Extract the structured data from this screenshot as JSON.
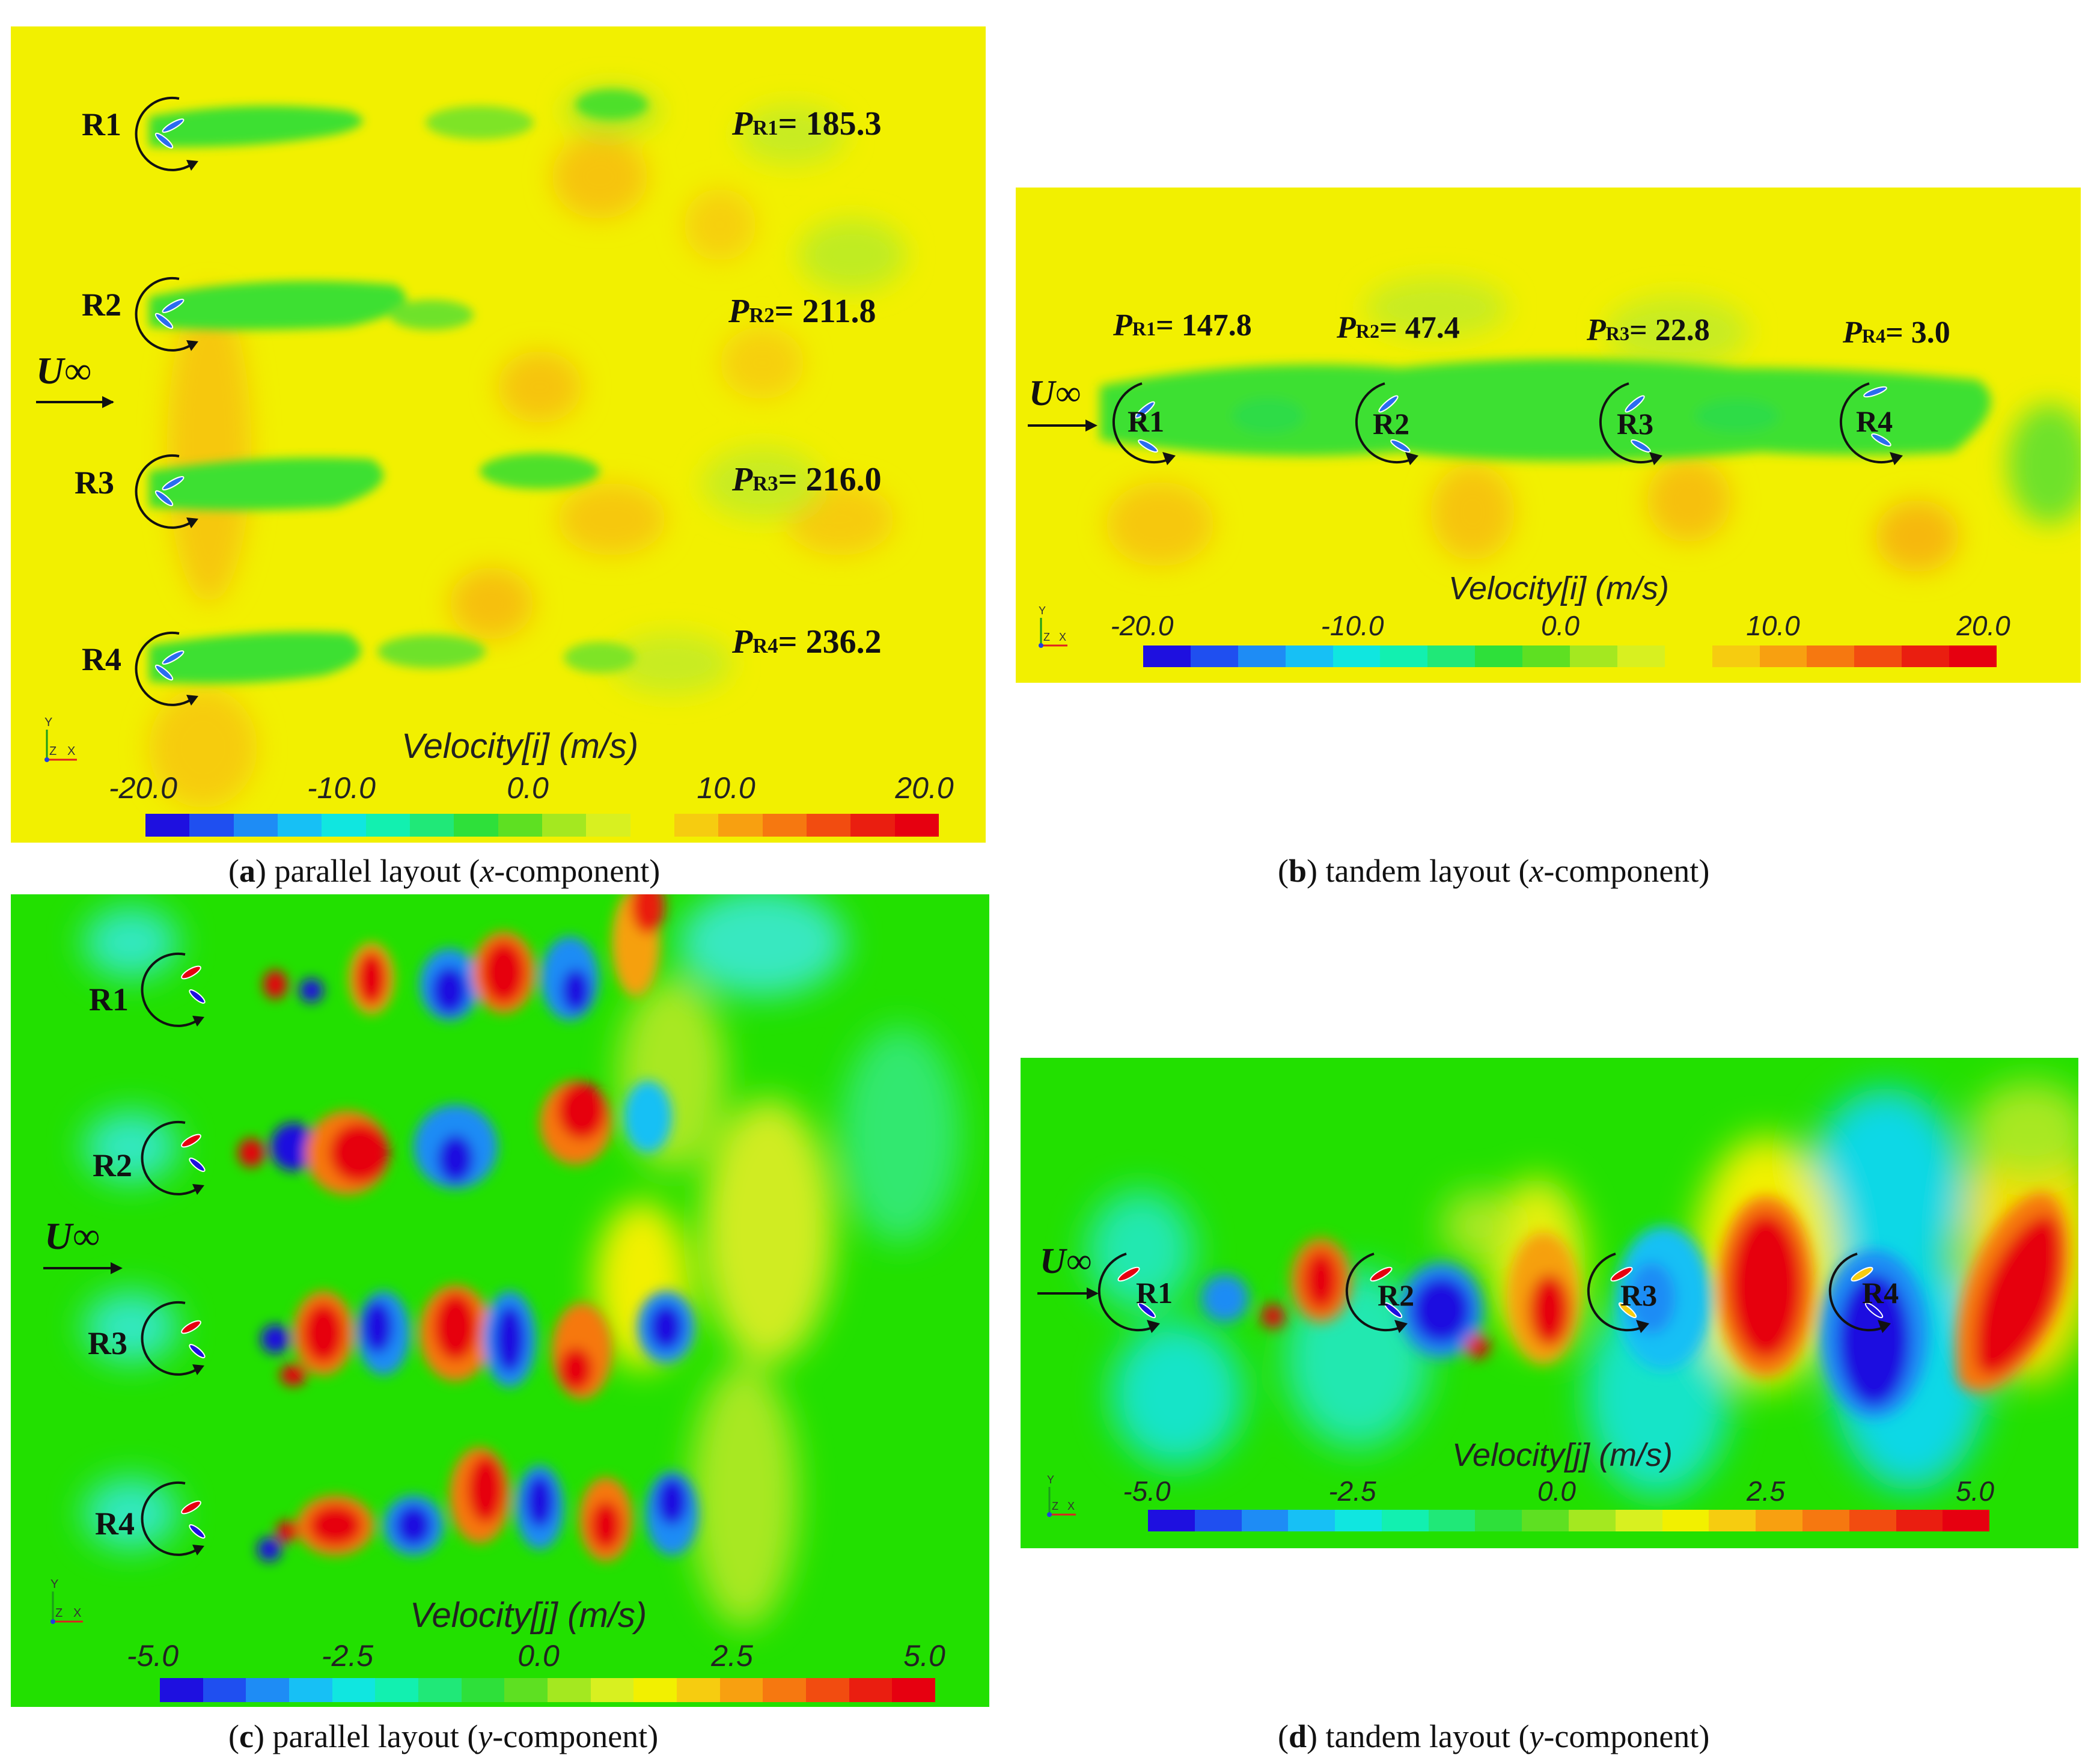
{
  "panels": {
    "a": {
      "tag": "a",
      "caption": "parallel layout",
      "component": "x",
      "colorbar": {
        "title": "Velocity[i] (m/s)",
        "ticks": [
          "-20.0",
          "-10.0",
          "0.0",
          "10.0",
          "20.0"
        ],
        "range": [
          -20.0,
          20.0
        ]
      },
      "flow_label": "U∞",
      "rotors": [
        {
          "label": "R1",
          "power_label": "P",
          "power_sub": "R1",
          "power_value": "= 185.3"
        },
        {
          "label": "R2",
          "power_label": "P",
          "power_sub": "R2",
          "power_value": "= 211.8"
        },
        {
          "label": "R3",
          "power_label": "P",
          "power_sub": "R3",
          "power_value": "= 216.0"
        },
        {
          "label": "R4",
          "power_label": "P",
          "power_sub": "R4",
          "power_value": "= 236.2"
        }
      ]
    },
    "b": {
      "tag": "b",
      "caption": "tandem layout",
      "component": "x",
      "colorbar": {
        "title": "Velocity[i] (m/s)",
        "ticks": [
          "-20.0",
          "-10.0",
          "0.0",
          "10.0",
          "20.0"
        ],
        "range": [
          -20.0,
          20.0
        ]
      },
      "flow_label": "U∞",
      "rotors": [
        {
          "label": "R1",
          "power_label": "P",
          "power_sub": "R1",
          "power_value": "= 147.8"
        },
        {
          "label": "R2",
          "power_label": "P",
          "power_sub": "R2",
          "power_value": "= 47.4"
        },
        {
          "label": "R3",
          "power_label": "P",
          "power_sub": "R3",
          "power_value": "= 22.8"
        },
        {
          "label": "R4",
          "power_label": "P",
          "power_sub": "R4",
          "power_value": "= 3.0"
        }
      ]
    },
    "c": {
      "tag": "c",
      "caption": "parallel layout",
      "component": "y",
      "colorbar": {
        "title": "Velocity[j] (m/s)",
        "ticks": [
          "-5.0",
          "-2.5",
          "0.0",
          "2.5",
          "5.0"
        ],
        "range": [
          -5.0,
          5.0
        ]
      },
      "flow_label": "U∞",
      "rotors": [
        {
          "label": "R1"
        },
        {
          "label": "R2"
        },
        {
          "label": "R3"
        },
        {
          "label": "R4"
        }
      ]
    },
    "d": {
      "tag": "d",
      "caption": "tandem layout",
      "component": "y",
      "colorbar": {
        "title": "Velocity[j] (m/s)",
        "ticks": [
          "-5.0",
          "-2.5",
          "0.0",
          "2.5",
          "5.0"
        ],
        "range": [
          -5.0,
          5.0
        ]
      },
      "flow_label": "U∞",
      "rotors": [
        {
          "label": "R1"
        },
        {
          "label": "R2"
        },
        {
          "label": "R3"
        },
        {
          "label": "R4"
        }
      ]
    }
  },
  "caption_suffix": "-component",
  "axis_labels": {
    "y": "Y",
    "z": "Z",
    "x": "X"
  },
  "colors": {
    "xvel_background": "#f2f000",
    "yvel_background": "#22e000",
    "colormap": [
      "#1e10e0",
      "#1f4ff0",
      "#1e8cf5",
      "#17c0f5",
      "#10e6e0",
      "#12f0b0",
      "#20e878",
      "#2ee03a",
      "#5ee022",
      "#a4e820",
      "#d8f020",
      "#f2f000",
      "#f6cc10",
      "#f8a010",
      "#f67810",
      "#f24c10",
      "#ea1e10",
      "#e60010"
    ]
  }
}
